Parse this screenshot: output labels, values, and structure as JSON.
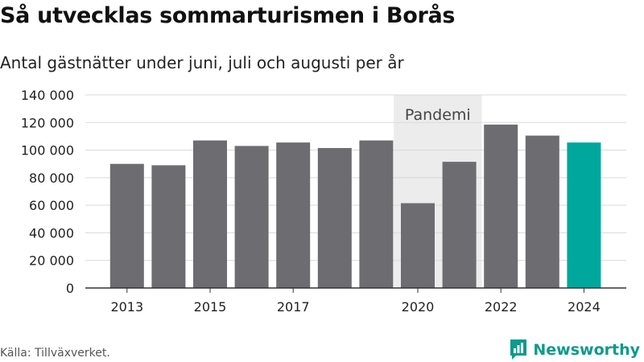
{
  "header": {
    "title": "Så utvecklas sommarturismen i Borås",
    "subtitle": "Antal gästnätter under juni, juli och augusti per år"
  },
  "footer": {
    "source": "Källa: Tillväxverket.",
    "brand": "Newsworthy"
  },
  "colors": {
    "bar": "#6d6c71",
    "highlight": "#00a79d",
    "band": "#ececec",
    "grid": "#d9d9d9",
    "brand": "#0e9a8e"
  },
  "chart_data": {
    "type": "bar",
    "categories": [
      "2013",
      "2014",
      "2015",
      "2016",
      "2017",
      "2018",
      "2019",
      "2020",
      "2021",
      "2022",
      "2023",
      "2024"
    ],
    "values": [
      90000,
      89000,
      107000,
      103000,
      105500,
      101500,
      107000,
      61500,
      91500,
      118500,
      110500,
      105500
    ],
    "highlight_category": "2024",
    "x_tick_labels": [
      "2013",
      "2015",
      "2017",
      "2020",
      "2022",
      "2024"
    ],
    "y_ticks": [
      "0",
      "20 000",
      "40 000",
      "60 000",
      "80 000",
      "100 000",
      "120 000",
      "140 000"
    ],
    "ylim": [
      0,
      140000
    ],
    "grid": true,
    "annotation": {
      "label": "Pandemi",
      "from_category": "2020",
      "to_category": "2021"
    }
  }
}
